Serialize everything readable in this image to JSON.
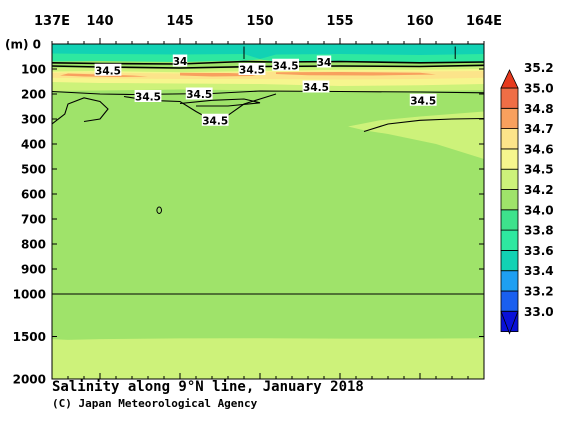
{
  "chart_data": {
    "type": "heatmap",
    "title": "Salinity along 9°N line, January 2018",
    "credit": "(C) Japan Meteorological Agency",
    "ylabel": "(m)",
    "x_ticks": [
      {
        "value": 137,
        "label": "137E"
      },
      {
        "value": 140,
        "label": "140"
      },
      {
        "value": 145,
        "label": "145"
      },
      {
        "value": 150,
        "label": "150"
      },
      {
        "value": 155,
        "label": "155"
      },
      {
        "value": 160,
        "label": "160"
      },
      {
        "value": 164,
        "label": "164E"
      }
    ],
    "xlim": [
      137,
      164
    ],
    "ylim_upper": [
      0,
      1000
    ],
    "ylim_lower": [
      1000,
      2000
    ],
    "y_ticks": [
      0,
      100,
      200,
      300,
      400,
      500,
      600,
      700,
      800,
      900,
      1000,
      1500,
      2000
    ],
    "colorbar": {
      "levels": [
        33.0,
        33.2,
        33.4,
        33.6,
        33.8,
        34.0,
        34.2,
        34.5,
        34.6,
        34.7,
        34.8,
        35.0,
        35.2
      ],
      "colors": [
        "#0a10d8",
        "#1a5fef",
        "#1e9ff2",
        "#12d2b4",
        "#2ee8a0",
        "#3ee28c",
        "#9fe36a",
        "#cdf27a",
        "#f6f68e",
        "#fce48a",
        "#f8a05e",
        "#ef6e46",
        "#e63a1e"
      ]
    },
    "contour_labels": [
      "34",
      "34.5",
      "34.5",
      "34.5",
      "34.5",
      "34.5",
      "34.5",
      "34.5",
      "34",
      "34.5"
    ],
    "legend": "right colorbar",
    "grid": false
  }
}
